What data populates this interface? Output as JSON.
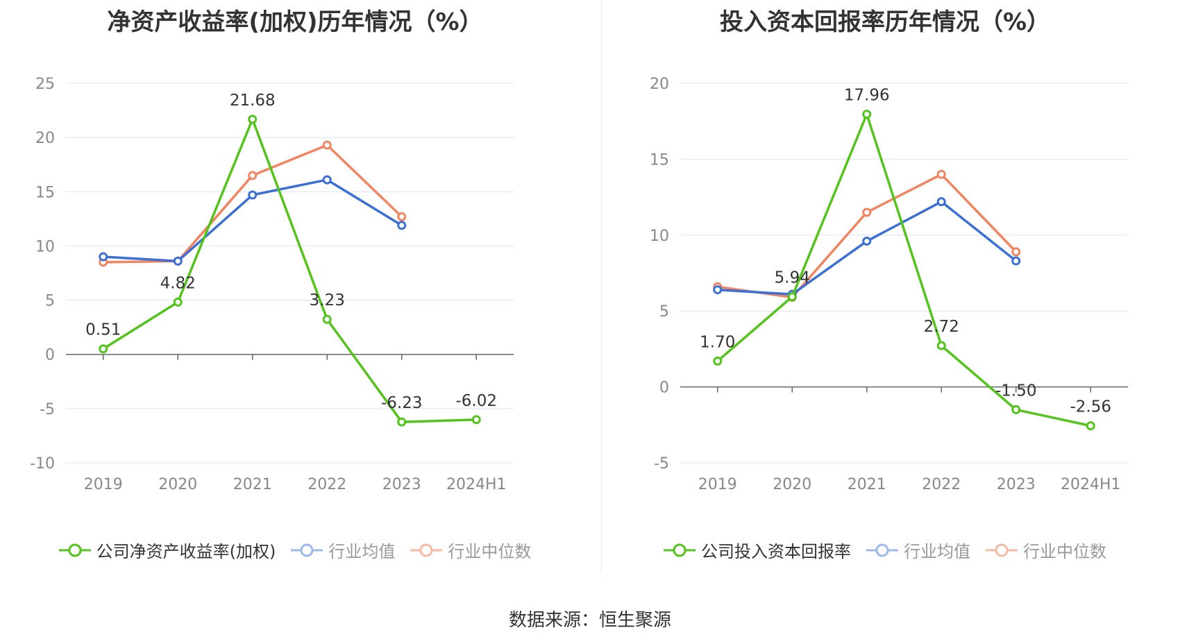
{
  "charts": {
    "left": {
      "title": "净资产收益率(加权)历年情况（%）",
      "legend": [
        "公司净资产收益率(加权)",
        "行业均值",
        "行业中位数"
      ]
    },
    "right": {
      "title": "投入资本回报率历年情况（%）",
      "legend": [
        "公司投入资本回报率",
        "行业均值",
        "行业中位数"
      ]
    }
  },
  "source": "数据来源：恒生聚源",
  "colors": {
    "company": "#52c41a",
    "mean": "#3a6fd8",
    "median": "#f4845f",
    "grid": "#dce3f0",
    "axis": "#666666",
    "tick": "#888888"
  },
  "chart_data": [
    {
      "type": "line",
      "title": "净资产收益率(加权)历年情况（%）",
      "categories": [
        "2019",
        "2020",
        "2021",
        "2022",
        "2023",
        "2024H1"
      ],
      "ylim": [
        -10,
        25
      ],
      "yticks": [
        25,
        20,
        15,
        10,
        5,
        0,
        -5,
        -10
      ],
      "legend_position": "bottom",
      "series": [
        {
          "name": "公司净资产收益率(加权)",
          "values": [
            0.51,
            4.82,
            21.68,
            3.23,
            -6.23,
            -6.02
          ],
          "labels": [
            "0.51",
            "4.82",
            "21.68",
            "3.23",
            "-6.23",
            "-6.02"
          ]
        },
        {
          "name": "行业均值",
          "values": [
            9.0,
            8.6,
            14.7,
            16.1,
            11.9,
            null
          ]
        },
        {
          "name": "行业中位数",
          "values": [
            8.5,
            8.6,
            16.5,
            19.3,
            12.7,
            null
          ]
        }
      ]
    },
    {
      "type": "line",
      "title": "投入资本回报率历年情况（%）",
      "categories": [
        "2019",
        "2020",
        "2021",
        "2022",
        "2023",
        "2024H1"
      ],
      "ylim": [
        -5,
        20
      ],
      "yticks": [
        20,
        15,
        10,
        5,
        0,
        -5
      ],
      "legend_position": "bottom",
      "series": [
        {
          "name": "公司投入资本回报率",
          "values": [
            1.7,
            5.94,
            17.96,
            2.72,
            -1.5,
            -2.56
          ],
          "labels": [
            "1.70",
            "5.94",
            "17.96",
            "2.72",
            "-1.50",
            "-2.56"
          ]
        },
        {
          "name": "行业均值",
          "values": [
            6.4,
            6.1,
            9.6,
            12.2,
            8.3,
            null
          ]
        },
        {
          "name": "行业中位数",
          "values": [
            6.6,
            5.9,
            11.5,
            14.0,
            8.9,
            null
          ]
        }
      ]
    }
  ]
}
